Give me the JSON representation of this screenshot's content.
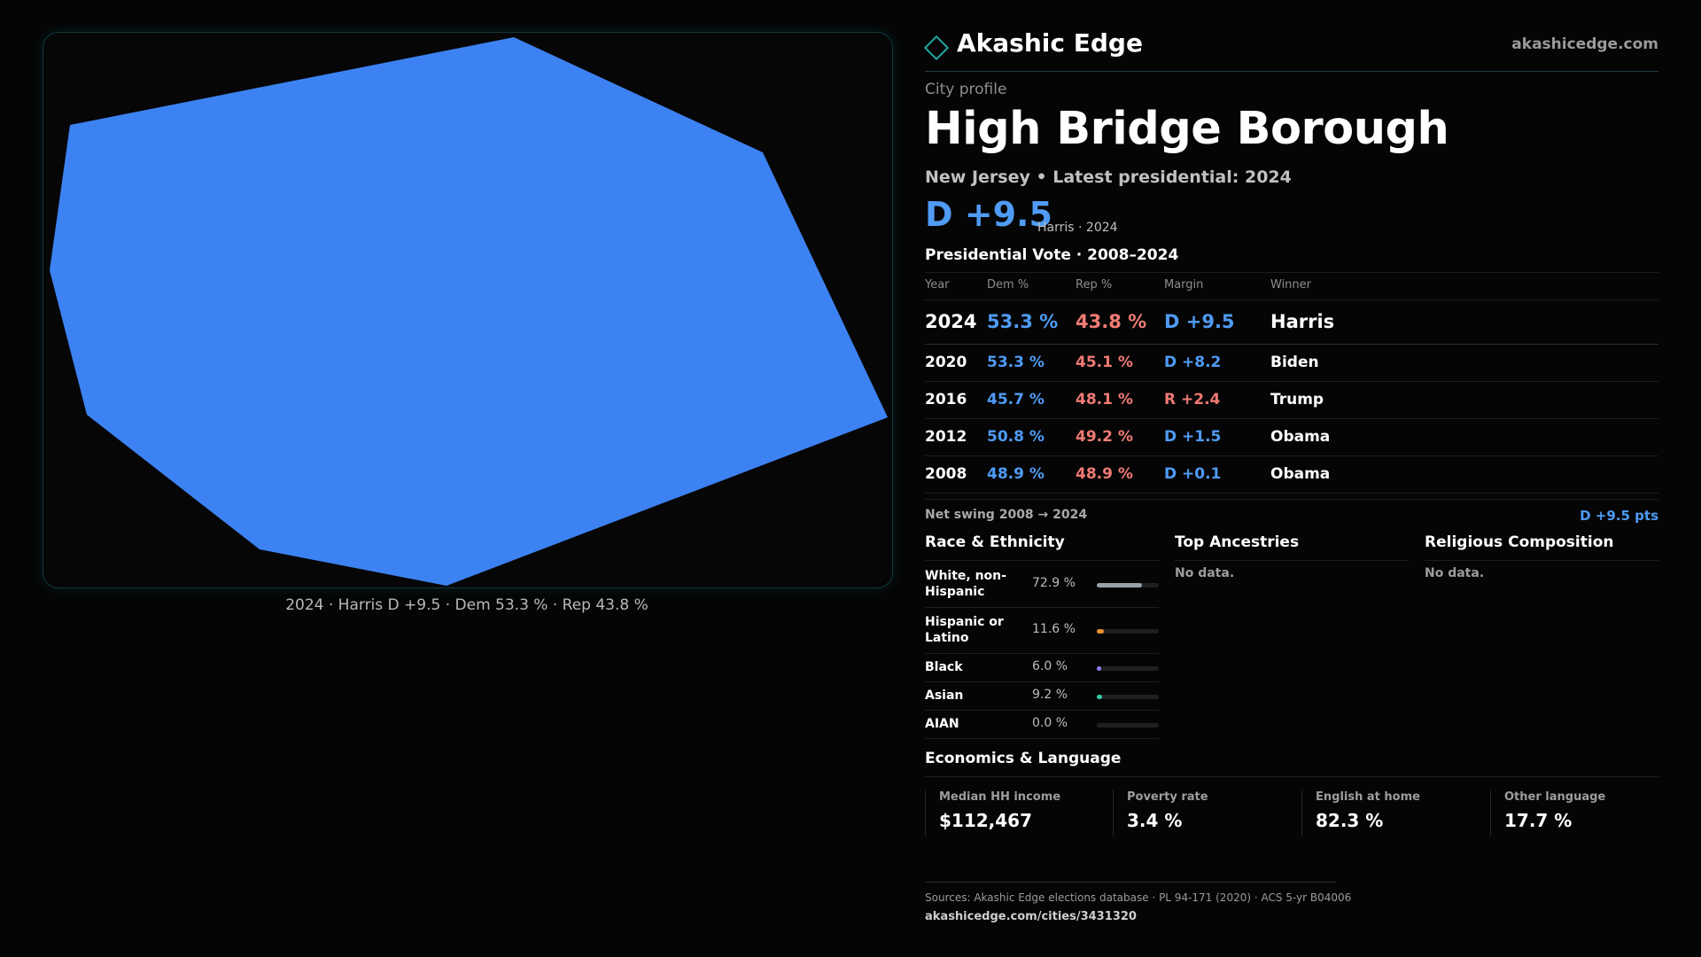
{
  "map": {
    "fill_color": "#3d82f2",
    "caption": "2024 · Harris D +9.5 · Dem 53.3 % · Rep 43.8 %"
  },
  "brand": {
    "name": "Akashic Edge",
    "url": "akashicedge.com",
    "accent": "#1fa6a9",
    "icon": "diamond-outline-icon"
  },
  "profile": {
    "kicker": "City profile",
    "title": "High Bridge Borough",
    "subtitle": "New Jersey • Latest presidential: 2024",
    "headline_margin": "D +9.5",
    "headline_note": "Harris · 2024"
  },
  "vote": {
    "title": "Presidential Vote · 2008–2024",
    "headers": [
      "Year",
      "Dem %",
      "Rep %",
      "Margin",
      "Winner"
    ],
    "rows": [
      {
        "year": "2024",
        "dem": "53.3 %",
        "rep": "43.8 %",
        "margin": "D +9.5",
        "party": "D",
        "winner": "Harris"
      },
      {
        "year": "2020",
        "dem": "53.3 %",
        "rep": "45.1 %",
        "margin": "D +8.2",
        "party": "D",
        "winner": "Biden"
      },
      {
        "year": "2016",
        "dem": "45.7 %",
        "rep": "48.1 %",
        "margin": "R +2.4",
        "party": "R",
        "winner": "Trump"
      },
      {
        "year": "2012",
        "dem": "50.8 %",
        "rep": "49.2 %",
        "margin": "D +1.5",
        "party": "D",
        "winner": "Obama"
      },
      {
        "year": "2008",
        "dem": "48.9 %",
        "rep": "48.9 %",
        "margin": "D +0.1",
        "party": "D",
        "winner": "Obama"
      }
    ],
    "swing_label": "Net swing 2008 → 2024",
    "swing_value": "D +9.5 pts"
  },
  "race": {
    "title": "Race & Ethnicity",
    "items": [
      {
        "label": "White, non-Hispanic",
        "pct": "72.9 %",
        "value": 72.9,
        "color": "#9aa0aa"
      },
      {
        "label": "Hispanic or Latino",
        "pct": "11.6 %",
        "value": 11.6,
        "color": "#e6902e"
      },
      {
        "label": "Black",
        "pct": "6.0 %",
        "value": 6.0,
        "color": "#8b7cf0"
      },
      {
        "label": "Asian",
        "pct": "9.2 %",
        "value": 9.2,
        "color": "#2fc9a0"
      },
      {
        "label": "AIAN",
        "pct": "0.0 %",
        "value": 0.0,
        "color": "#d35ea8"
      }
    ]
  },
  "ancestries": {
    "title": "Top Ancestries",
    "empty": "No data."
  },
  "religion": {
    "title": "Religious Composition",
    "empty": "No data."
  },
  "economics": {
    "title": "Economics & Language",
    "stats": [
      {
        "label": "Median HH income",
        "value": "$112,467"
      },
      {
        "label": "Poverty rate",
        "value": "3.4 %"
      },
      {
        "label": "English at home",
        "value": "82.3 %"
      },
      {
        "label": "Other language",
        "value": "17.7 %"
      }
    ]
  },
  "footer": {
    "sources": "Sources: Akashic Edge elections database · PL 94-171 (2020) · ACS 5-yr B04006",
    "url": "akashicedge.com/cities/3431320"
  }
}
